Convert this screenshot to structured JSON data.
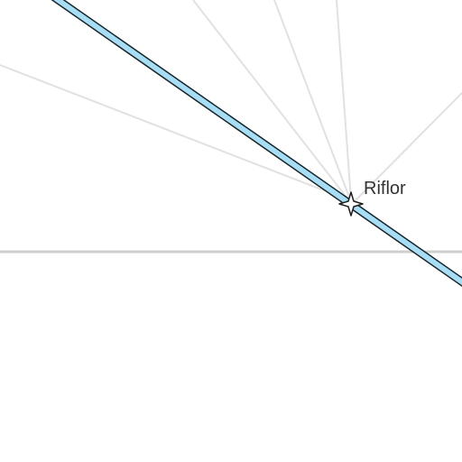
{
  "map": {
    "place_label": "Riflor",
    "colors": {
      "background": "#ffffff",
      "minor_roads": "#e1e1e1",
      "horizontal_road": "#cfcfcf",
      "main_route_fill": "#a8def5",
      "main_route_casing": "#17252b",
      "marker_fill": "#ffffff",
      "marker_stroke": "#1f1f1f",
      "label_text": "#333333"
    },
    "icons": {
      "place_marker": "four-point-star-icon"
    }
  }
}
